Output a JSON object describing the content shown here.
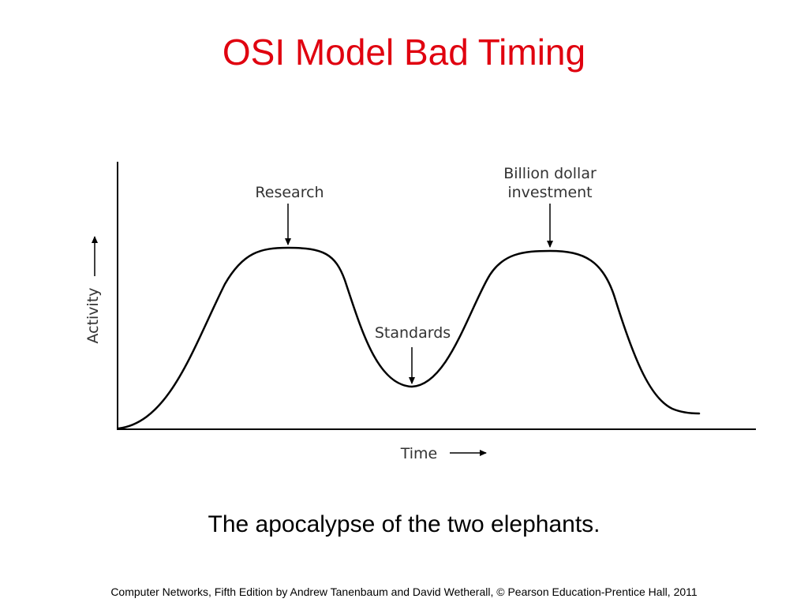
{
  "slide": {
    "title": "OSI Model Bad Timing",
    "caption": "The apocalypse of the two elephants.",
    "credit": "Computer Networks, Fifth Edition by Andrew Tanenbaum and David Wetherall, © Pearson Education-Prentice Hall, 2011"
  },
  "diagram": {
    "y_axis_label": "Activity",
    "x_axis_label": "Time",
    "annotations": {
      "research": "Research",
      "standards": "Standards",
      "investment_line1": "Billion dollar",
      "investment_line2": "investment"
    }
  },
  "colors": {
    "title": "#e0000f",
    "ink": "#000000",
    "diagram_text": "#333333"
  }
}
